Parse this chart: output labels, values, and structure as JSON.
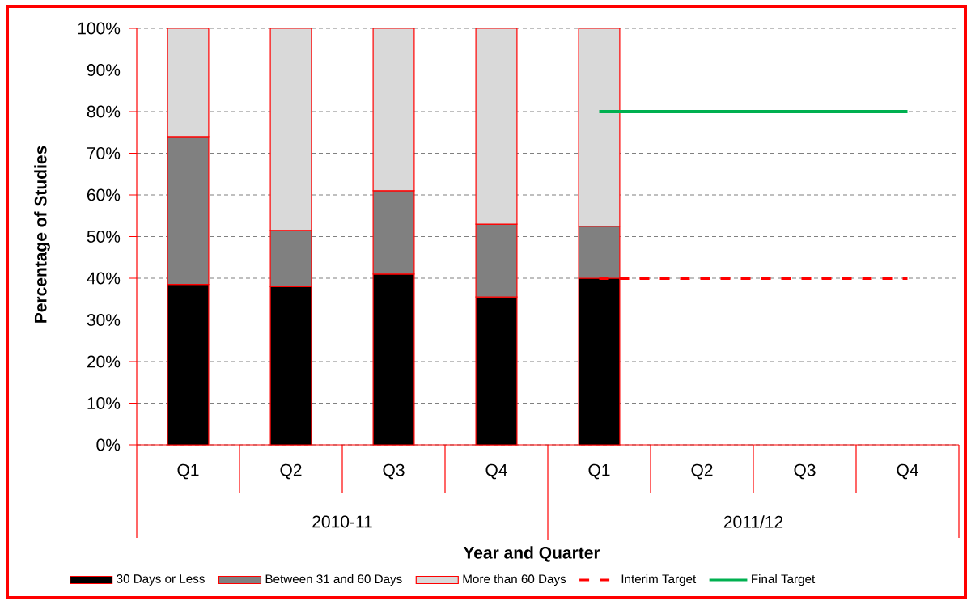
{
  "chart_data": {
    "type": "bar",
    "stacked": true,
    "xlabel": "Year and Quarter",
    "ylabel": "Percentage of Studies",
    "categories": [
      "Q1",
      "Q2",
      "Q3",
      "Q4",
      "Q1",
      "Q2",
      "Q3",
      "Q4"
    ],
    "annotations": [
      "2010-11",
      "2011/12"
    ],
    "series": [
      {
        "name": "30 Days or Less",
        "color": "#000000",
        "values": [
          38.5,
          38,
          41,
          35.5,
          40,
          null,
          null,
          null
        ]
      },
      {
        "name": "Between 31 and 60 Days",
        "color": "#808080",
        "values": [
          35.5,
          13.5,
          20,
          17.5,
          12.5,
          null,
          null,
          null
        ]
      },
      {
        "name": "More than 60 Days",
        "color": "#d9d9d9",
        "values": [
          26,
          48.5,
          39,
          47,
          47.5,
          null,
          null,
          null
        ]
      },
      {
        "name": "Interim Target",
        "type": "line",
        "line_style": "dashed",
        "color": "#ff0000",
        "values": [
          null,
          null,
          null,
          null,
          40,
          40,
          40,
          40
        ]
      },
      {
        "name": "Final Target",
        "type": "line",
        "line_style": "solid",
        "color": "#00b050",
        "values": [
          null,
          null,
          null,
          null,
          80,
          80,
          80,
          80
        ]
      }
    ],
    "ylim": [
      0,
      100
    ],
    "yticks": [
      {
        "value": 0,
        "label": "0%"
      },
      {
        "value": 10,
        "label": "10%"
      },
      {
        "value": 20,
        "label": "20%"
      },
      {
        "value": 30,
        "label": "30%"
      },
      {
        "value": 40,
        "label": "40%"
      },
      {
        "value": 50,
        "label": "50%"
      },
      {
        "value": 60,
        "label": "60%"
      },
      {
        "value": 70,
        "label": "70%"
      },
      {
        "value": 80,
        "label": "80%"
      },
      {
        "value": 90,
        "label": "90%"
      },
      {
        "value": 100,
        "label": "100%"
      }
    ],
    "grid": "y",
    "legend": "bottom"
  }
}
